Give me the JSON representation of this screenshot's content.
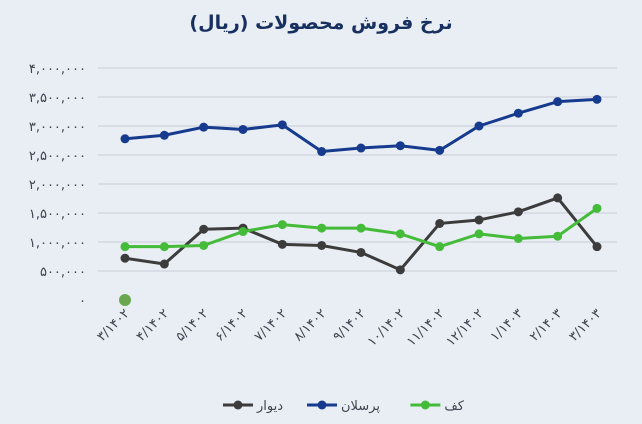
{
  "chart_data": {
    "type": "line",
    "title": "نرخ فروش محصولات (ریال)",
    "xlabel": "",
    "ylabel": "",
    "ylim": [
      0,
      4000000
    ],
    "y_ticks": [
      {
        "value": 0,
        "label": "۰"
      },
      {
        "value": 500000,
        "label": "۵۰۰,۰۰۰"
      },
      {
        "value": 1000000,
        "label": "۱,۰۰۰,۰۰۰"
      },
      {
        "value": 1500000,
        "label": "۱,۵۰۰,۰۰۰"
      },
      {
        "value": 2000000,
        "label": "۲,۰۰۰,۰۰۰"
      },
      {
        "value": 2500000,
        "label": "۲,۵۰۰,۰۰۰"
      },
      {
        "value": 3000000,
        "label": "۳,۰۰۰,۰۰۰"
      },
      {
        "value": 3500000,
        "label": "۳,۵۰۰,۰۰۰"
      },
      {
        "value": 4000000,
        "label": "۴,۰۰۰,۰۰۰"
      }
    ],
    "categories": [
      "۳/۱۴۰۲",
      "۴/۱۴۰۲",
      "۵/۱۴۰۲",
      "۶/۱۴۰۲",
      "۷/۱۴۰۲",
      "۸/۱۴۰۲",
      "۹/۱۴۰۲",
      "۱۰/۱۴۰۲",
      "۱۱/۱۴۰۲",
      "۱۲/۱۴۰۲",
      "۱/۱۴۰۳",
      "۲/۱۴۰۳",
      "۳/۱۴۰۳"
    ],
    "grid": true,
    "legend_position": "bottom",
    "series": [
      {
        "name": "دیوار",
        "color": "#3c3c3c",
        "values": [
          720000,
          620000,
          1220000,
          1240000,
          960000,
          940000,
          820000,
          520000,
          1320000,
          1380000,
          1520000,
          1760000,
          920000
        ]
      },
      {
        "name": "پرسلان",
        "color": "#163a8e",
        "values": [
          2780000,
          2840000,
          2980000,
          2940000,
          3020000,
          2560000,
          2620000,
          2660000,
          2580000,
          3000000,
          3220000,
          3420000,
          3460000
        ]
      },
      {
        "name": "کف",
        "color": "#45bb3a",
        "values": [
          920000,
          920000,
          940000,
          1180000,
          1300000,
          1240000,
          1240000,
          1140000,
          920000,
          1140000,
          1060000,
          1100000,
          1580000
        ]
      }
    ],
    "stray_marker": {
      "category_index": 0,
      "value": 0,
      "color": "#6aa84f"
    }
  }
}
